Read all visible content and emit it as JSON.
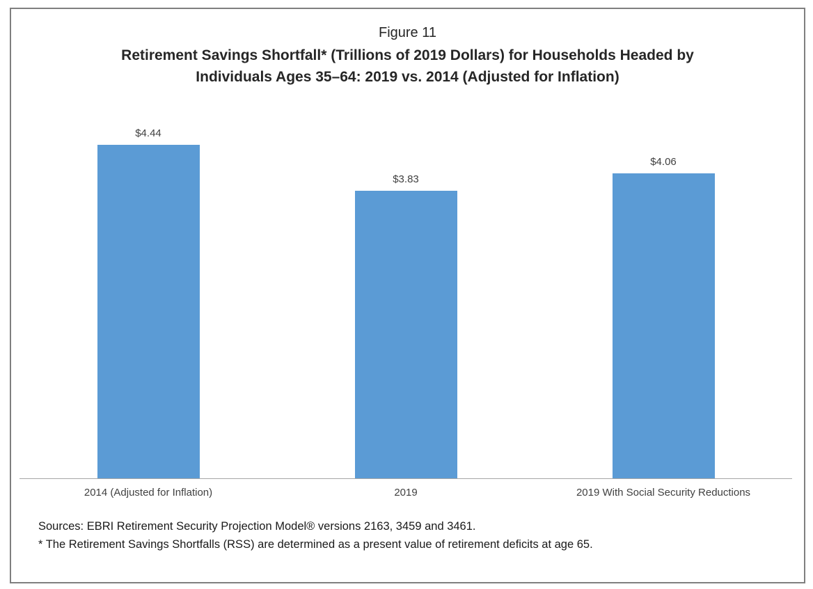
{
  "figure": {
    "figure_label": "Figure 11",
    "title_line1": "Retirement Savings Shortfall* (Trillions of 2019 Dollars) for Households Headed by",
    "title_line2": "Individuals Ages 35–64: 2019 vs. 2014 (Adjusted for Inflation)"
  },
  "chart_data": {
    "type": "bar",
    "title": "Retirement Savings Shortfall* (Trillions of 2019 Dollars) for Households Headed by Individuals Ages 35–64: 2019 vs. 2014 (Adjusted for Inflation)",
    "categories": [
      "2014 (Adjusted for Inflation)",
      "2019",
      "2019 With Social Security Reductions"
    ],
    "values": [
      4.44,
      3.83,
      4.06
    ],
    "data_labels": [
      "$4.44",
      "$3.83",
      "$4.06"
    ],
    "xlabel": "",
    "ylabel": "",
    "ylim": [
      0,
      5
    ],
    "grid": false,
    "legend": false,
    "bar_color": "#5b9bd5",
    "axis_line_color": "#a6a6a6"
  },
  "footnotes": {
    "sources": "Sources: EBRI Retirement Security Projection Model® versions 2163, 3459 and 3461.",
    "asterisk_note": "* The Retirement Savings Shortfalls (RSS) are determined as a present value of retirement deficits at age 65."
  }
}
